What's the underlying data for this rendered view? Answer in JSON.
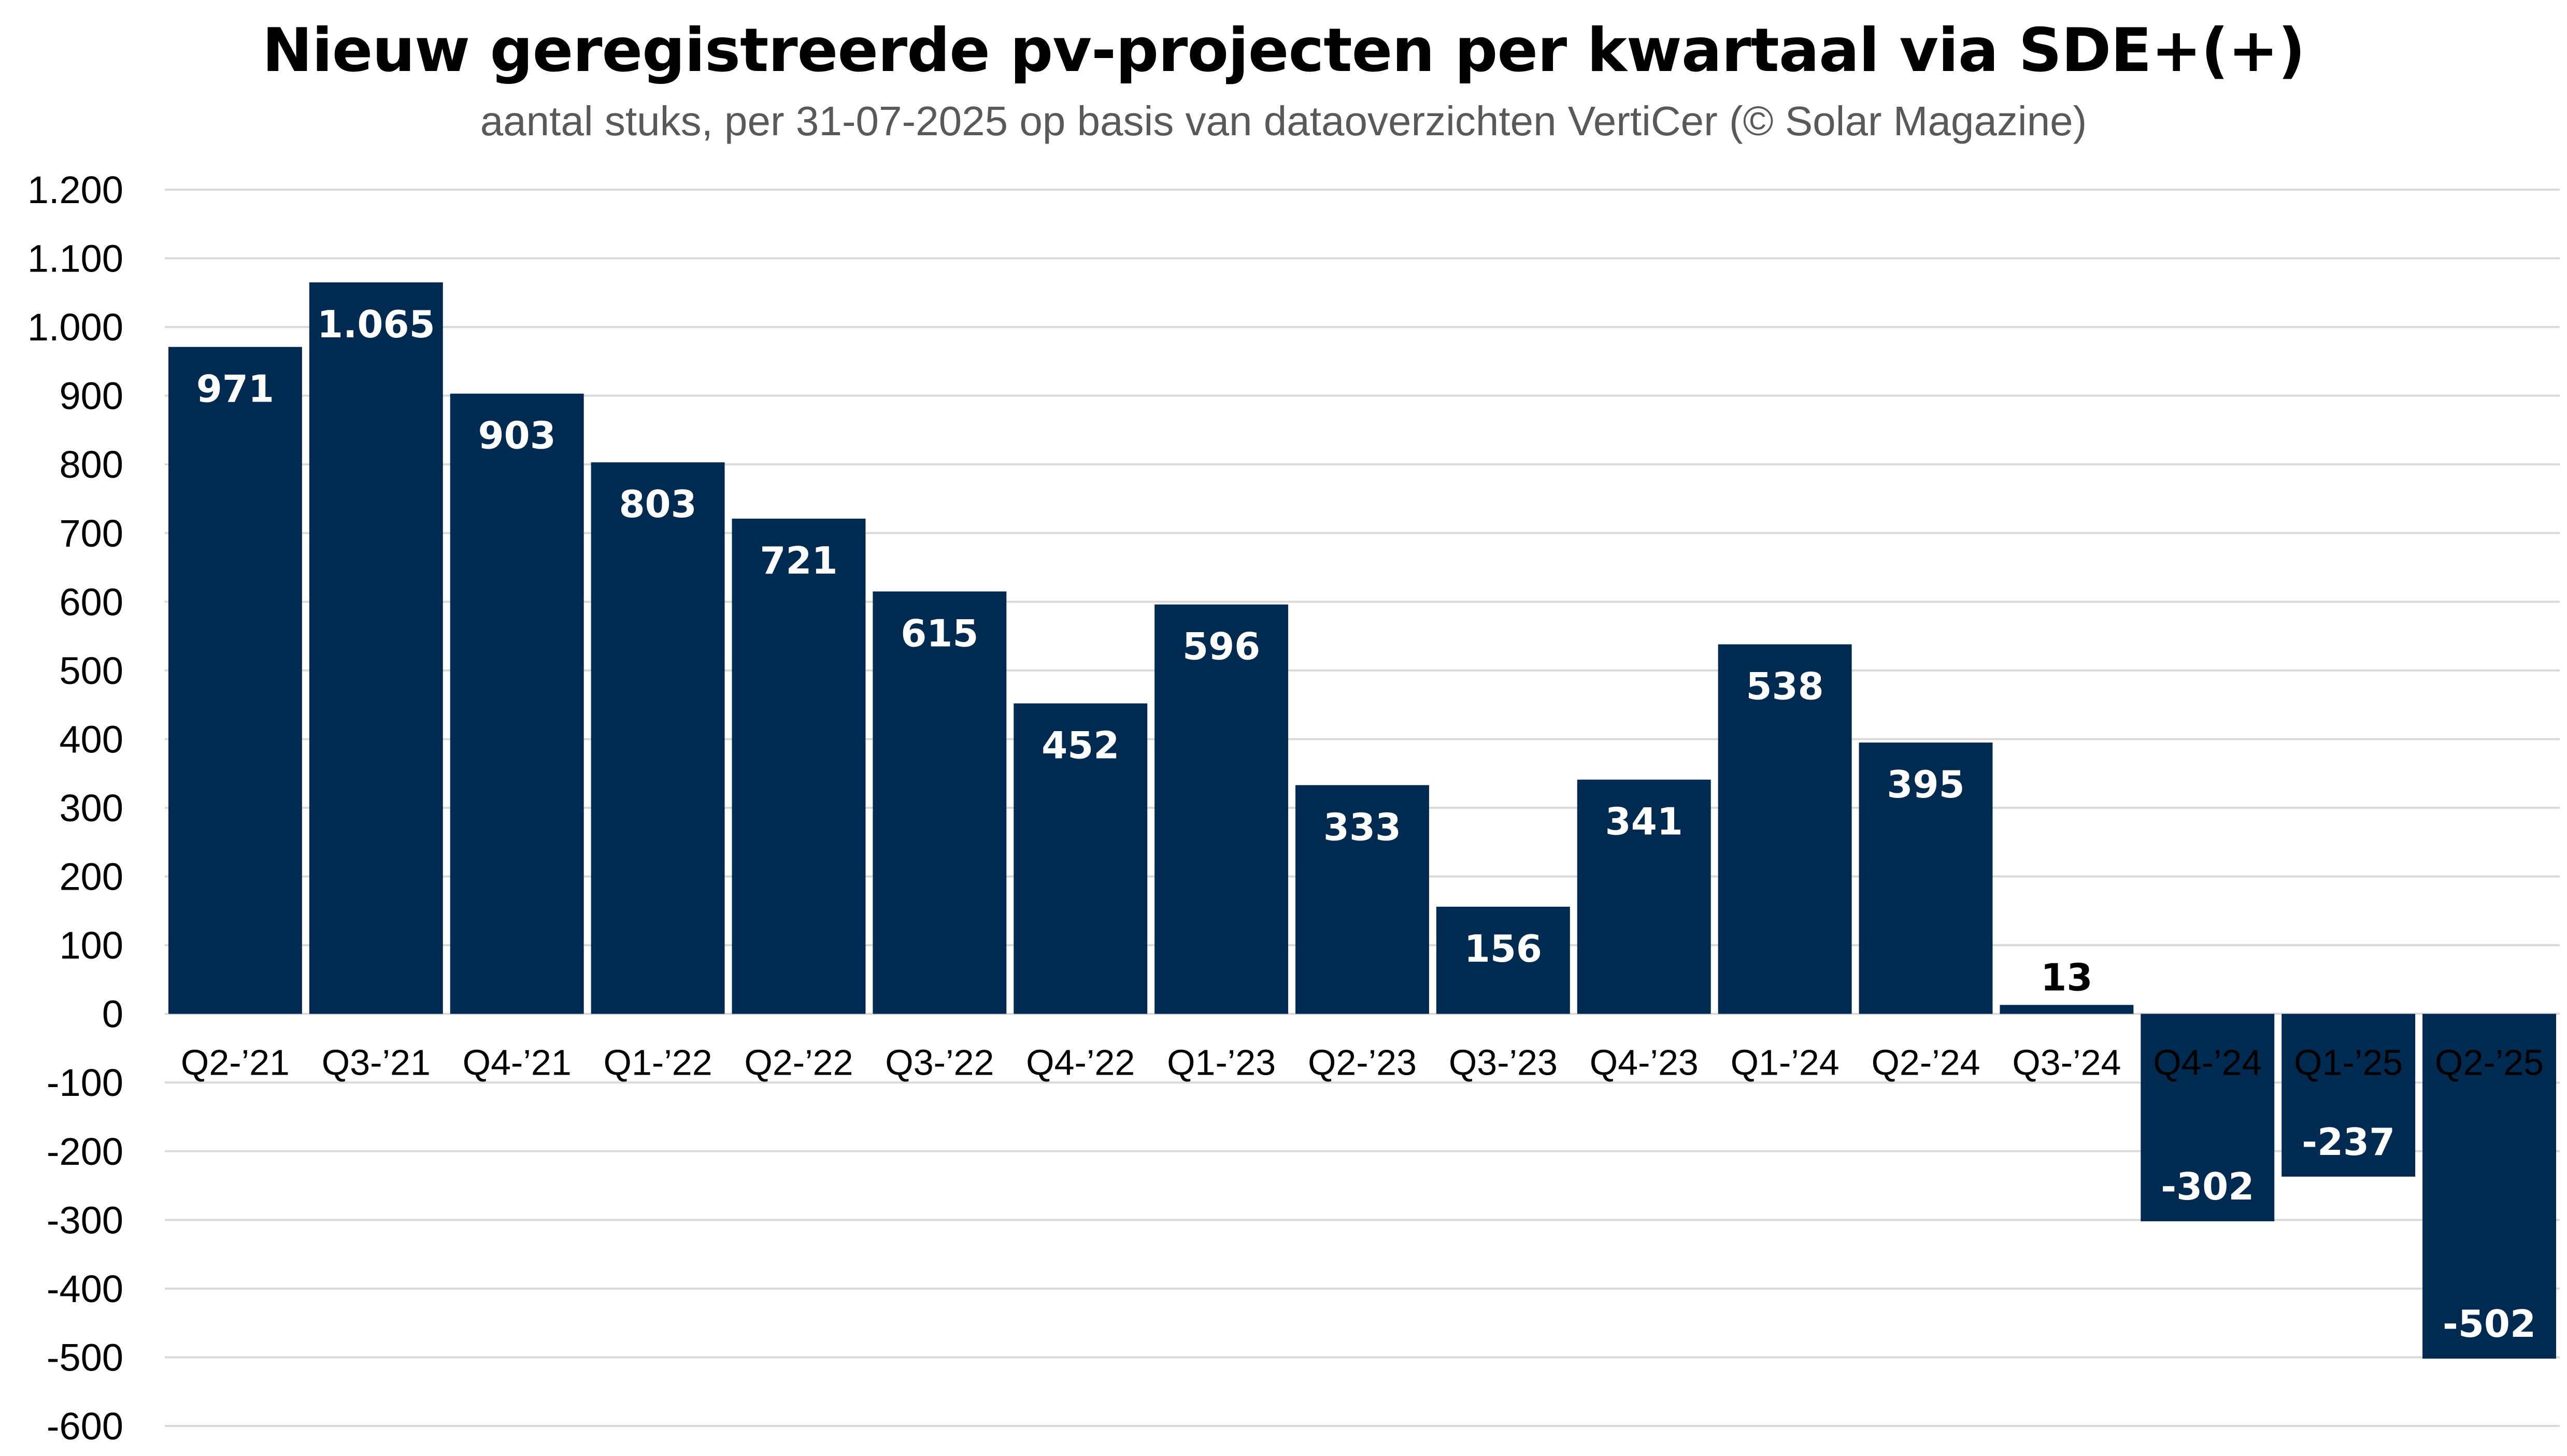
{
  "chart_data": {
    "type": "bar",
    "title": "Nieuw geregistreerde pv-projecten per kwartaal via SDE+(+)",
    "subtitle": "aantal stuks, per 31-07-2025 op basis van dataoverzichten VertiCer (© Solar Magazine)",
    "categories": [
      "Q2-’21",
      "Q3-’21",
      "Q4-’21",
      "Q1-’22",
      "Q2-’22",
      "Q3-’22",
      "Q4-’22",
      "Q1-’23",
      "Q2-’23",
      "Q3-’23",
      "Q4-’23",
      "Q1-’24",
      "Q2-’24",
      "Q3-’24",
      "Q4-’24",
      "Q1-’25",
      "Q2-’25"
    ],
    "values": [
      971,
      1065,
      903,
      803,
      721,
      615,
      452,
      596,
      333,
      156,
      341,
      538,
      395,
      13,
      -302,
      -237,
      -502
    ],
    "data_labels": [
      "971",
      "1.065",
      "903",
      "803",
      "721",
      "615",
      "452",
      "596",
      "333",
      "156",
      "341",
      "538",
      "395",
      "13",
      "-302",
      "-237",
      "-502"
    ],
    "ylim": [
      -600,
      1200
    ],
    "yticks": [
      1200,
      1100,
      1000,
      900,
      800,
      700,
      600,
      500,
      400,
      300,
      200,
      100,
      0,
      -100,
      -200,
      -300,
      -400,
      -500,
      -600
    ],
    "ytick_labels": [
      "1.200",
      "1.100",
      "1.000",
      "900",
      "800",
      "700",
      "600",
      "500",
      "400",
      "300",
      "200",
      "100",
      "0",
      "-100",
      "-200",
      "-300",
      "-400",
      "-500",
      "-600"
    ],
    "grid": true,
    "legend": "none",
    "colors": {
      "bar": "#002a4f",
      "grid": "#d9d9d9",
      "label_inside": "#ffffff",
      "label_outside": "#000000"
    }
  }
}
